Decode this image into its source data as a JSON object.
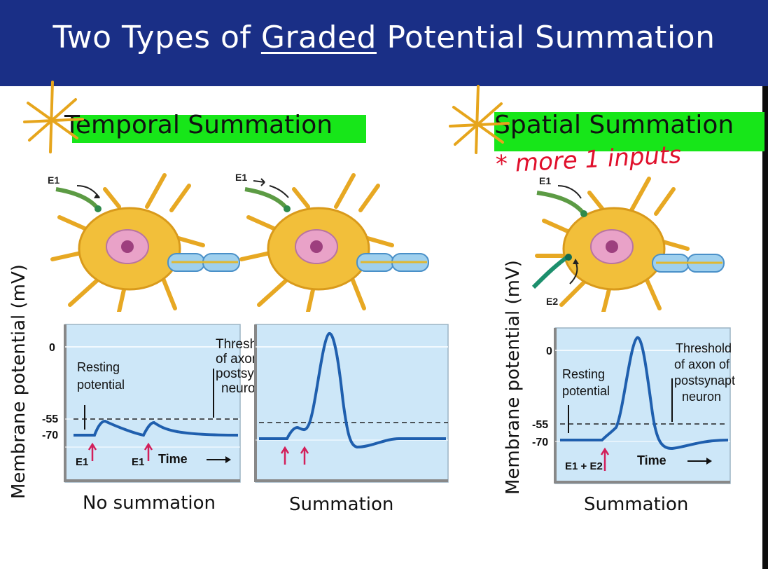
{
  "slide": {
    "title_before": "Two Types of ",
    "title_underlined": "Graded",
    "title_after": " Potential Summation"
  },
  "temporal": {
    "heading": "Temporal Summation",
    "panel_no_summation": {
      "caption": "No summation",
      "y0": "0",
      "y55": "-55",
      "y70": "-70",
      "resting_line1": "Resting",
      "resting_line2": "potential",
      "stim1": "E1",
      "stim2": "E1",
      "time": "Time"
    },
    "panel_summation": {
      "caption": "Summation"
    },
    "threshold_line1": "Threshold",
    "threshold_line2": "of axon of",
    "threshold_line3": "postsynaptic",
    "threshold_line4": "neuron",
    "neuron1_input": "E1",
    "neuron2_input": "E1"
  },
  "spatial": {
    "heading": "Spatial Summation",
    "note": "* more 1 inputs",
    "caption": "Summation",
    "y0": "0",
    "y55": "-55",
    "y70": "-70",
    "resting_line1": "Resting",
    "resting_line2": "potential",
    "threshold_line1": "Threshold",
    "threshold_line2": "of axon of",
    "threshold_line3": "postsynaptic",
    "threshold_line4": "neuron",
    "stim": "E1 + E2",
    "time": "Time",
    "input1": "E1",
    "input2": "E2"
  },
  "y_axis_label": "Membrane potential (mV)",
  "colors": {
    "header": "#1a2f86",
    "highlight": "#17e619",
    "trace": "#1f5fae",
    "plot_bg": "#cde7f8",
    "arrow": "#d21f5a",
    "neuron": "#f2bf3a",
    "star": "#e6a51c"
  }
}
